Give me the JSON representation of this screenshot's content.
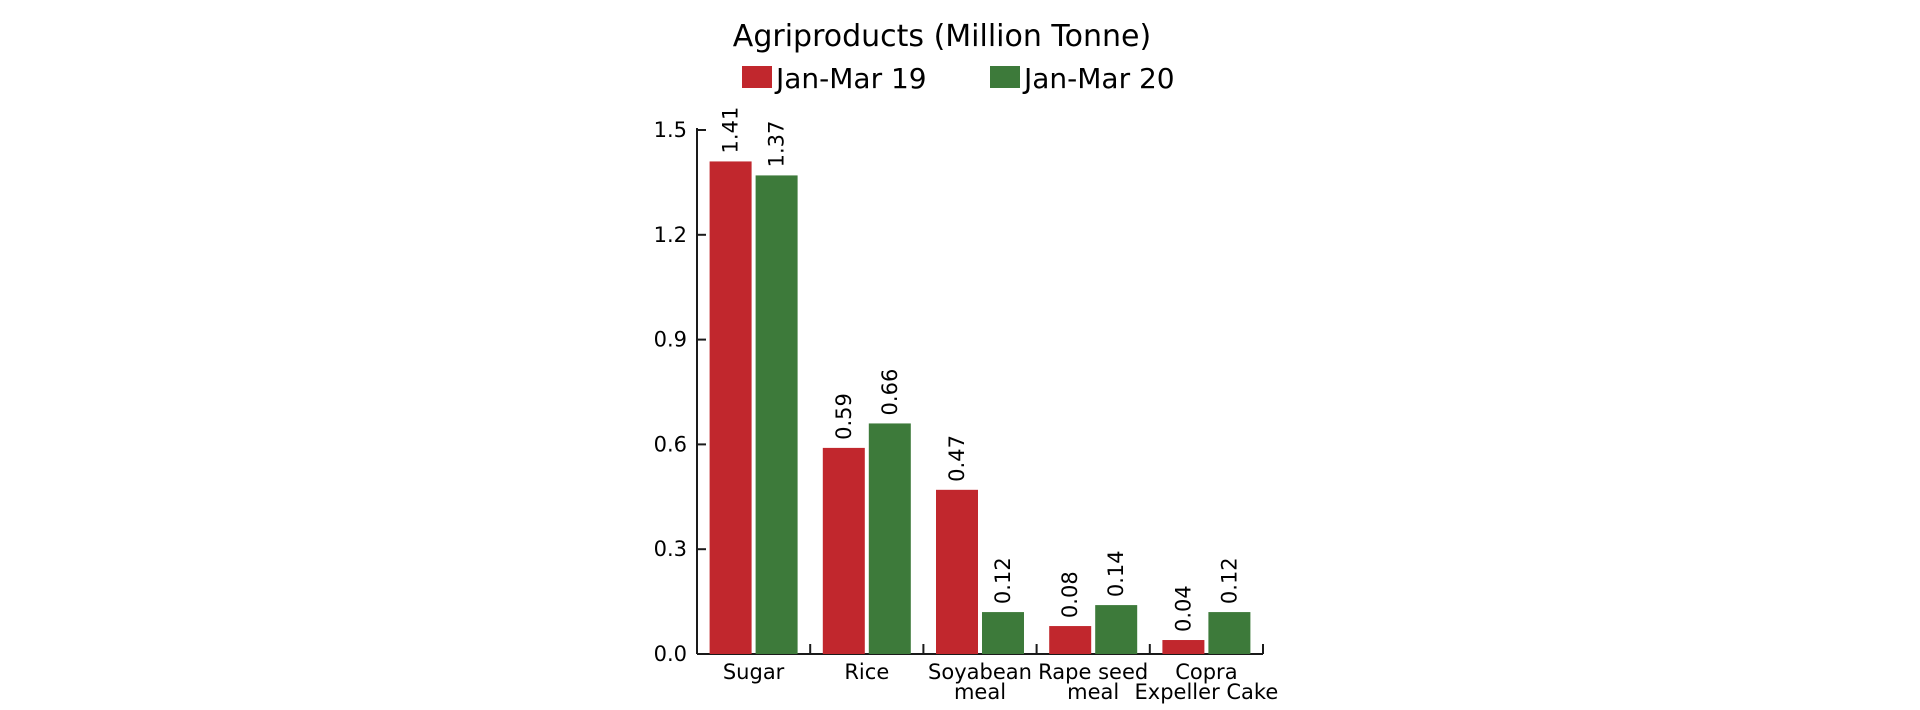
{
  "chart_data": {
    "type": "bar",
    "title": "Agriproducts (Million Tonne)",
    "categories": [
      [
        "Sugar"
      ],
      [
        "Rice"
      ],
      [
        "Soyabean",
        "meal"
      ],
      [
        "Rape seed",
        "meal"
      ],
      [
        "Copra",
        "Expeller Cake"
      ]
    ],
    "series": [
      {
        "name": "Jan-Mar 19",
        "color": "#c1272d",
        "values": [
          1.41,
          0.59,
          0.47,
          0.08,
          0.04
        ],
        "labels": [
          "1.41",
          "0.59",
          "0.47",
          "0.08",
          "0.04"
        ]
      },
      {
        "name": "Jan-Mar 20",
        "color": "#3d7a3a",
        "values": [
          1.37,
          0.66,
          0.12,
          0.14,
          0.12
        ],
        "labels": [
          "1.37",
          "0.66",
          "0.12",
          "0.14",
          "0.12"
        ]
      }
    ],
    "yticks": [
      "0.0",
      "0.3",
      "0.6",
      "0.9",
      "1.2",
      "1.5"
    ],
    "ylim": [
      0,
      1.5
    ],
    "xlabel": "",
    "ylabel": "",
    "legend": "top-center",
    "grid": false
  }
}
